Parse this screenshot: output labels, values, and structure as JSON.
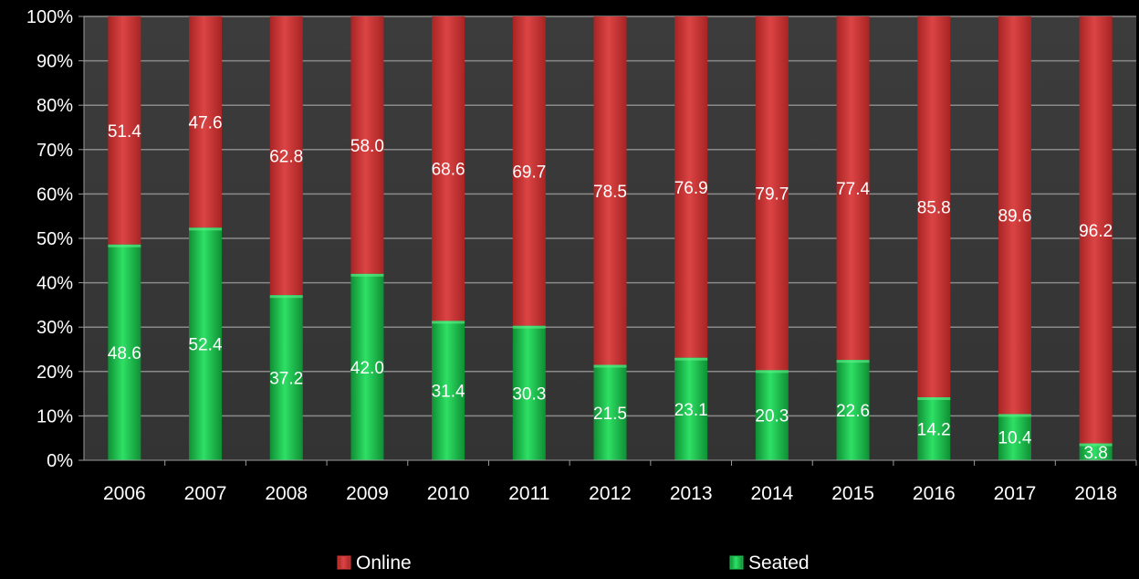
{
  "chart_data": {
    "type": "bar",
    "stacked": true,
    "percent_stacked": true,
    "categories": [
      "2006",
      "2007",
      "2008",
      "2009",
      "2010",
      "2011",
      "2012",
      "2013",
      "2014",
      "2015",
      "2016",
      "2017",
      "2018"
    ],
    "series": [
      {
        "name": "Seated",
        "color": "#1fc24e",
        "values": [
          48.6,
          52.4,
          37.2,
          42.0,
          31.4,
          30.3,
          21.5,
          23.1,
          20.3,
          22.6,
          14.2,
          10.4,
          3.8
        ],
        "labels": [
          "48.6",
          "52.4",
          "37.2",
          "42.0",
          "31.4",
          "30.3",
          "21.5",
          "23.1",
          "20.3",
          "22.6",
          "14.2",
          "10.4",
          "3.8"
        ]
      },
      {
        "name": "Online",
        "color": "#d43a3a",
        "values": [
          51.4,
          47.6,
          62.8,
          58.0,
          68.6,
          69.7,
          78.5,
          76.9,
          79.7,
          77.4,
          85.8,
          89.6,
          96.2
        ],
        "labels": [
          "51.4",
          "47.6",
          "62.8",
          "58.0",
          "68.6",
          "69.7",
          "78.5",
          "76.9",
          "79.7",
          "77.4",
          "85.8",
          "89.6",
          "96.2"
        ]
      }
    ],
    "ylim": [
      0,
      100
    ],
    "yticks": [
      "0%",
      "10%",
      "20%",
      "30%",
      "40%",
      "50%",
      "60%",
      "70%",
      "80%",
      "90%",
      "100%"
    ],
    "grid": true,
    "legend": {
      "position": "bottom",
      "entries": [
        "Online",
        "Seated"
      ]
    },
    "title": "",
    "xlabel": "",
    "ylabel": "",
    "plot_background": "#3a3a3a",
    "page_background": "#000000"
  }
}
